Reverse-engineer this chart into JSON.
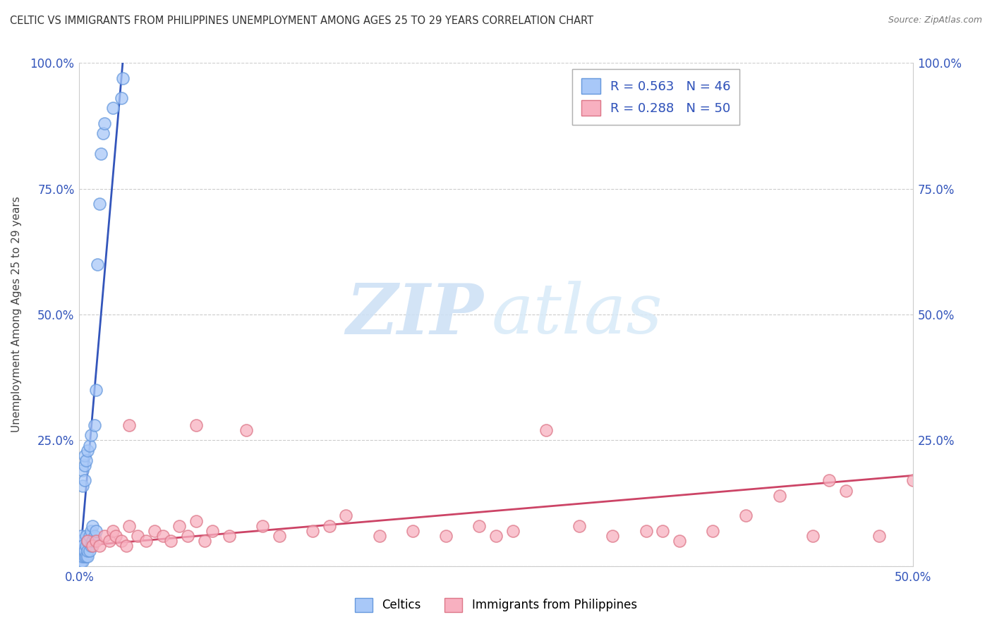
{
  "title": "CELTIC VS IMMIGRANTS FROM PHILIPPINES UNEMPLOYMENT AMONG AGES 25 TO 29 YEARS CORRELATION CHART",
  "source": "Source: ZipAtlas.com",
  "ylabel": "Unemployment Among Ages 25 to 29 years",
  "xlim": [
    0,
    0.5
  ],
  "ylim": [
    0,
    1.0
  ],
  "xtick_positions": [
    0.0,
    0.1,
    0.2,
    0.3,
    0.4,
    0.5
  ],
  "xticklabels": [
    "0.0%",
    "",
    "",
    "",
    "",
    "50.0%"
  ],
  "ytick_positions": [
    0.0,
    0.25,
    0.5,
    0.75,
    1.0
  ],
  "yticklabels_left": [
    "",
    "25.0%",
    "50.0%",
    "75.0%",
    "100.0%"
  ],
  "yticklabels_right": [
    "",
    "25.0%",
    "50.0%",
    "75.0%",
    "100.0%"
  ],
  "grid_color": "#cccccc",
  "background_color": "#ffffff",
  "celtics_color": "#a8c8f8",
  "celtics_edge": "#6699dd",
  "philippines_color": "#f8b0c0",
  "philippines_edge": "#dd7788",
  "celtics_line_color": "#3355bb",
  "philippines_line_color": "#cc4466",
  "celtics_R": 0.563,
  "celtics_N": 46,
  "philippines_R": 0.288,
  "philippines_N": 50,
  "tick_color": "#3355bb",
  "celtics_line_x": [
    0.0,
    0.026
  ],
  "celtics_line_y": [
    0.0,
    1.0
  ],
  "philippines_line_x": [
    0.0,
    0.5
  ],
  "philippines_line_y": [
    0.04,
    0.18
  ],
  "celtics_x": [
    0.001,
    0.001,
    0.001,
    0.001,
    0.001,
    0.001,
    0.001,
    0.002,
    0.002,
    0.002,
    0.002,
    0.002,
    0.002,
    0.003,
    0.003,
    0.003,
    0.003,
    0.003,
    0.004,
    0.004,
    0.004,
    0.004,
    0.005,
    0.005,
    0.005,
    0.005,
    0.006,
    0.006,
    0.006,
    0.007,
    0.007,
    0.007,
    0.008,
    0.008,
    0.009,
    0.009,
    0.01,
    0.01,
    0.011,
    0.012,
    0.013,
    0.014,
    0.015,
    0.02,
    0.025,
    0.026
  ],
  "celtics_y": [
    0.01,
    0.01,
    0.02,
    0.03,
    0.04,
    0.05,
    0.06,
    0.01,
    0.02,
    0.03,
    0.04,
    0.16,
    0.19,
    0.02,
    0.03,
    0.17,
    0.2,
    0.22,
    0.02,
    0.04,
    0.06,
    0.21,
    0.02,
    0.03,
    0.05,
    0.23,
    0.03,
    0.06,
    0.24,
    0.04,
    0.07,
    0.26,
    0.05,
    0.08,
    0.06,
    0.28,
    0.07,
    0.35,
    0.6,
    0.72,
    0.82,
    0.86,
    0.88,
    0.91,
    0.93,
    0.97
  ],
  "philippines_x": [
    0.005,
    0.008,
    0.01,
    0.012,
    0.015,
    0.018,
    0.02,
    0.022,
    0.025,
    0.028,
    0.03,
    0.035,
    0.04,
    0.045,
    0.05,
    0.055,
    0.06,
    0.065,
    0.07,
    0.075,
    0.08,
    0.09,
    0.1,
    0.11,
    0.12,
    0.14,
    0.16,
    0.18,
    0.2,
    0.22,
    0.24,
    0.26,
    0.28,
    0.3,
    0.32,
    0.34,
    0.36,
    0.38,
    0.4,
    0.42,
    0.44,
    0.46,
    0.48,
    0.5,
    0.03,
    0.07,
    0.15,
    0.25,
    0.35,
    0.45
  ],
  "philippines_y": [
    0.05,
    0.04,
    0.05,
    0.04,
    0.06,
    0.05,
    0.07,
    0.06,
    0.05,
    0.04,
    0.08,
    0.06,
    0.05,
    0.07,
    0.06,
    0.05,
    0.08,
    0.06,
    0.09,
    0.05,
    0.07,
    0.06,
    0.27,
    0.08,
    0.06,
    0.07,
    0.1,
    0.06,
    0.07,
    0.06,
    0.08,
    0.07,
    0.27,
    0.08,
    0.06,
    0.07,
    0.05,
    0.07,
    0.1,
    0.14,
    0.06,
    0.15,
    0.06,
    0.17,
    0.28,
    0.28,
    0.08,
    0.06,
    0.07,
    0.17
  ]
}
